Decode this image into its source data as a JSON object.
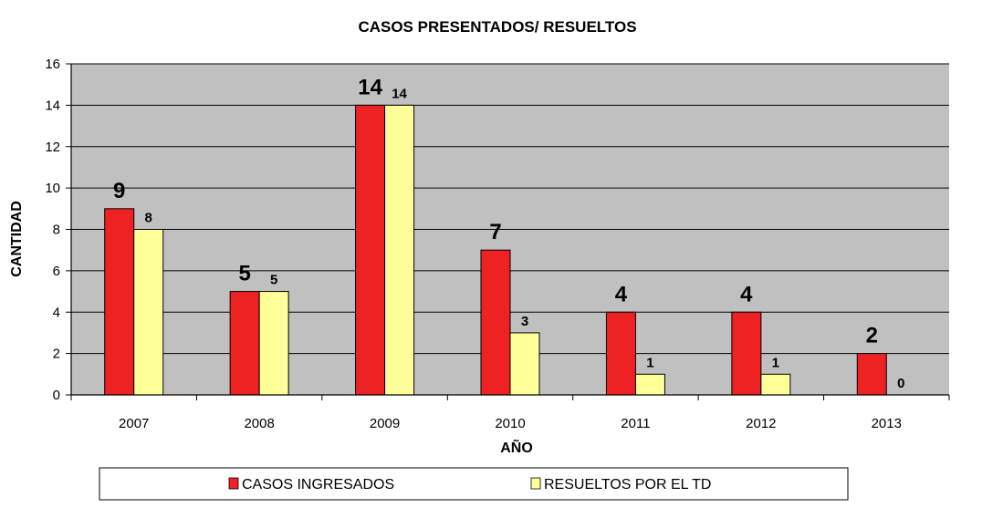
{
  "chart_data": {
    "type": "bar",
    "title": "CASOS PRESENTADOS/ RESUELTOS",
    "xlabel": "AÑO",
    "ylabel": "CANTIDAD",
    "categories": [
      "2007",
      "2008",
      "2009",
      "2010",
      "2011",
      "2012",
      "2013"
    ],
    "ylim": [
      0,
      16
    ],
    "yticks": [
      "0",
      "2",
      "4",
      "6",
      "8",
      "10",
      "12",
      "14",
      "16"
    ],
    "grid": true,
    "legend_position": "bottom",
    "series": [
      {
        "name": "CASOS INGRESADOS",
        "color": "#ee2222",
        "values": [
          9,
          5,
          14,
          7,
          4,
          4,
          2
        ],
        "labels": [
          "9",
          "5",
          "14",
          "7",
          "4",
          "4",
          "2"
        ]
      },
      {
        "name": "RESUELTOS POR EL TD",
        "color": "#ffff99",
        "values": [
          8,
          5,
          14,
          3,
          1,
          1,
          0
        ],
        "labels": [
          "8",
          "5",
          "14",
          "3",
          "1",
          "1",
          "0"
        ]
      }
    ],
    "plot_background": "#c0c0c0"
  }
}
